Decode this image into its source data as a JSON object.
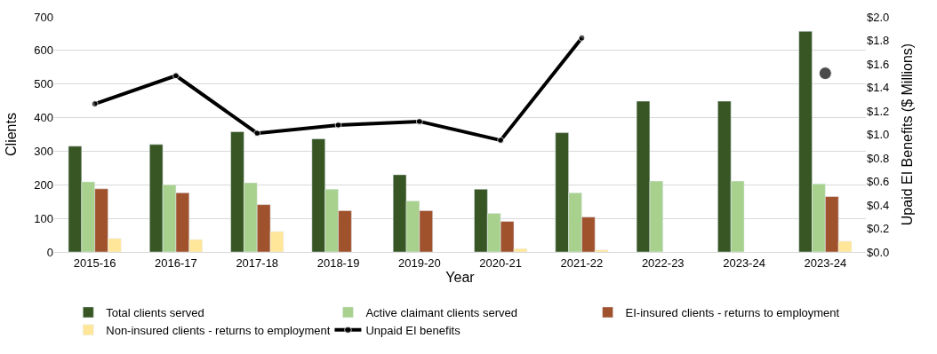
{
  "chart_data": {
    "type": "bar",
    "xlabel": "Year",
    "ylabel": "Clients",
    "y2label": "Upaid EI Benefits ($ Millions)",
    "categories": [
      "2015-16",
      "2016-17",
      "2017-18",
      "2018-19",
      "2019-20",
      "2020-21",
      "2021-22",
      "2022-23",
      "2023-24",
      "2023-24"
    ],
    "series": [
      {
        "name": "Total clients served",
        "color": "#375623",
        "values": [
          315,
          320,
          358,
          337,
          230,
          187,
          355,
          449,
          449,
          657
        ]
      },
      {
        "name": "Active claimant clients served",
        "color": "#a9d18e",
        "values": [
          209,
          200,
          206,
          187,
          152,
          115,
          176,
          211,
          211,
          203
        ]
      },
      {
        "name": "EI-insured clients - returns to employment",
        "color": "#a0522d",
        "values": [
          188,
          176,
          141,
          123,
          123,
          91,
          104,
          null,
          null,
          165
        ]
      },
      {
        "name": "Non-insured clients - returns to employment",
        "color": "#ffe699",
        "values": [
          40,
          37,
          61,
          null,
          null,
          10,
          6,
          null,
          null,
          32
        ]
      },
      {
        "name": "Unpaid EI benefits",
        "type": "line",
        "axis": "y2",
        "color": "#000000",
        "marker": "circle",
        "values": [
          1.26,
          1.5,
          1.01,
          1.08,
          1.11,
          0.95,
          1.82,
          null,
          null,
          1.52
        ]
      }
    ],
    "ylim": [
      0,
      700
    ],
    "yticks": [
      0,
      100,
      200,
      300,
      400,
      500,
      600,
      700
    ],
    "y2lim": [
      0,
      2.0
    ],
    "y2ticks": [
      {
        "value": 0,
        "label": "$0.0"
      },
      {
        "value": 0.2,
        "label": "$0.2"
      },
      {
        "value": 0.4,
        "label": "$0.4"
      },
      {
        "value": 0.6,
        "label": "$0.6"
      },
      {
        "value": 0.8,
        "label": "$0.8"
      },
      {
        "value": 1.0,
        "label": "$1.0"
      },
      {
        "value": 1.2,
        "label": "$1.2"
      },
      {
        "value": 1.4,
        "label": "$1.4"
      },
      {
        "value": 1.6,
        "label": "$1.6"
      },
      {
        "value": 1.8,
        "label": "$1.8"
      },
      {
        "value": 2.0,
        "label": "$2.0"
      }
    ],
    "grid": "y",
    "legend": "bottom"
  }
}
